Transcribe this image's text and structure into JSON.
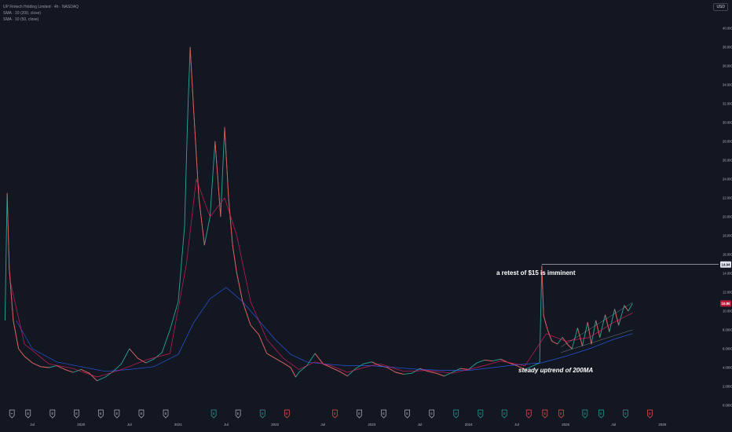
{
  "header": {
    "title": "UP Fintech Holding Limited · 4h · NASDAQ",
    "legend": [
      "SMA · 10 (200, close)",
      "SMA · 10 (50, close)"
    ],
    "currency": "USD"
  },
  "annotations": {
    "retest": "a retest of $15 is imminent",
    "uptrend": "steady uptrend of 200MA"
  },
  "price_labels": {
    "level": "14.94",
    "last": "10.80"
  },
  "colors": {
    "background": "#131722",
    "up": "#26a69a",
    "down": "#ef5350",
    "sma200": "#2962ff",
    "sma50": "#e91e63",
    "level_line": "#d1d4dc",
    "last_label": "#b71c3a"
  },
  "events": [
    {
      "x": "2019-04",
      "type": "split",
      "glyph": "✂"
    },
    {
      "x": "2019-06",
      "type": "news",
      "glyph": "E"
    },
    {
      "x": "2019-09",
      "type": "news",
      "glyph": "E"
    },
    {
      "x": "2019-12",
      "type": "news",
      "glyph": "E"
    },
    {
      "x": "2020-03",
      "type": "news",
      "glyph": "E"
    },
    {
      "x": "2020-05",
      "type": "news",
      "glyph": "E"
    },
    {
      "x": "2020-08",
      "type": "news",
      "glyph": "E"
    },
    {
      "x": "2020-11",
      "type": "news",
      "glyph": "E"
    },
    {
      "x": "2021-05",
      "type": "earnings-beat",
      "glyph": "E"
    },
    {
      "x": "2021-08",
      "type": "news",
      "glyph": "E"
    },
    {
      "x": "2021-11",
      "type": "earnings-beat",
      "glyph": "E"
    },
    {
      "x": "2022-02",
      "type": "earnings-miss",
      "glyph": "E"
    },
    {
      "x": "2022-08",
      "type": "earnings-miss",
      "glyph": "E"
    },
    {
      "x": "2022-11",
      "type": "news",
      "glyph": "E"
    },
    {
      "x": "2023-02",
      "type": "news",
      "glyph": "E"
    },
    {
      "x": "2023-05",
      "type": "news",
      "glyph": "E"
    },
    {
      "x": "2023-08",
      "type": "news",
      "glyph": "E"
    },
    {
      "x": "2023-11",
      "type": "earnings-beat",
      "glyph": "E"
    },
    {
      "x": "2024-02",
      "type": "earnings-beat",
      "glyph": "E"
    },
    {
      "x": "2024-05",
      "type": "earnings-beat",
      "glyph": "E"
    },
    {
      "x": "2024-08",
      "type": "earnings-miss",
      "glyph": "E"
    },
    {
      "x": "2024-10",
      "type": "earnings-miss",
      "glyph": "E"
    },
    {
      "x": "2024-12",
      "type": "earnings-miss",
      "glyph": "E"
    },
    {
      "x": "2025-03",
      "type": "earnings-beat",
      "glyph": "E"
    },
    {
      "x": "2025-05",
      "type": "earnings-beat",
      "glyph": "E"
    },
    {
      "x": "2025-08",
      "type": "earnings-beat",
      "glyph": "E"
    },
    {
      "x": "2025-11",
      "type": "earnings-miss",
      "glyph": "E"
    }
  ],
  "chart_data": {
    "type": "line",
    "title": "UP Fintech Holding Limited · 4h · NASDAQ",
    "xlabel": "",
    "ylabel": "",
    "x_range": [
      "2019-03",
      "2026-08"
    ],
    "ylim": [
      0,
      40
    ],
    "y_ticks": [
      "0.0000",
      "2.0000",
      "4.0000",
      "6.0000",
      "8.0000",
      "10.0000",
      "12.0000",
      "14.0000",
      "16.0000",
      "18.0000",
      "20.0000",
      "22.0000",
      "24.0000",
      "26.0000",
      "28.0000",
      "30.0000",
      "32.0000",
      "34.0000",
      "36.0000",
      "38.0000",
      "40.0000"
    ],
    "x_ticks": [
      {
        "x": "2019-07",
        "label": "Jul"
      },
      {
        "x": "2020-01",
        "label": "2020"
      },
      {
        "x": "2020-07",
        "label": "Jul"
      },
      {
        "x": "2021-01",
        "label": "2021"
      },
      {
        "x": "2021-07",
        "label": "Jul"
      },
      {
        "x": "2022-01",
        "label": "2022"
      },
      {
        "x": "2022-07",
        "label": "Jul"
      },
      {
        "x": "2023-01",
        "label": "2023"
      },
      {
        "x": "2023-07",
        "label": "Jul"
      },
      {
        "x": "2024-01",
        "label": "2024"
      },
      {
        "x": "2024-07",
        "label": "Jul"
      },
      {
        "x": "2025-01",
        "label": "2025"
      },
      {
        "x": "2025-07",
        "label": "Jul"
      },
      {
        "x": "2026-01",
        "label": "2026"
      }
    ],
    "grid": false,
    "series": [
      {
        "name": "Price",
        "points": [
          [
            "2019-03-20",
            9.0
          ],
          [
            "2019-03-28",
            22.5
          ],
          [
            "2019-04-05",
            14.5
          ],
          [
            "2019-04-20",
            9.0
          ],
          [
            "2019-05-10",
            6.0
          ],
          [
            "2019-06-01",
            5.2
          ],
          [
            "2019-07-01",
            4.5
          ],
          [
            "2019-08-01",
            4.1
          ],
          [
            "2019-09-01",
            4.0
          ],
          [
            "2019-10-01",
            4.2
          ],
          [
            "2019-11-01",
            3.8
          ],
          [
            "2019-12-01",
            3.5
          ],
          [
            "2020-01-01",
            3.8
          ],
          [
            "2020-02-01",
            3.4
          ],
          [
            "2020-03-01",
            2.6
          ],
          [
            "2020-04-01",
            3.0
          ],
          [
            "2020-05-01",
            3.6
          ],
          [
            "2020-06-01",
            4.4
          ],
          [
            "2020-07-01",
            6.0
          ],
          [
            "2020-08-01",
            5.0
          ],
          [
            "2020-09-01",
            4.5
          ],
          [
            "2020-10-01",
            4.9
          ],
          [
            "2020-11-01",
            5.6
          ],
          [
            "2020-12-01",
            8.0
          ],
          [
            "2021-01-01",
            11.0
          ],
          [
            "2021-01-25",
            19.0
          ],
          [
            "2021-02-05",
            30.0
          ],
          [
            "2021-02-15",
            38.0
          ],
          [
            "2021-03-01",
            31.0
          ],
          [
            "2021-03-20",
            22.0
          ],
          [
            "2021-04-10",
            17.0
          ],
          [
            "2021-05-01",
            20.0
          ],
          [
            "2021-05-20",
            28.0
          ],
          [
            "2021-06-10",
            20.0
          ],
          [
            "2021-06-25",
            29.5
          ],
          [
            "2021-07-10",
            22.0
          ],
          [
            "2021-07-25",
            17.0
          ],
          [
            "2021-08-10",
            14.0
          ],
          [
            "2021-09-01",
            11.0
          ],
          [
            "2021-10-01",
            8.5
          ],
          [
            "2021-11-01",
            7.5
          ],
          [
            "2021-12-01",
            5.5
          ],
          [
            "2022-01-01",
            5.0
          ],
          [
            "2022-02-01",
            4.5
          ],
          [
            "2022-03-01",
            4.0
          ],
          [
            "2022-03-20",
            3.0
          ],
          [
            "2022-04-01",
            3.5
          ],
          [
            "2022-05-01",
            4.2
          ],
          [
            "2022-06-01",
            5.5
          ],
          [
            "2022-07-01",
            4.4
          ],
          [
            "2022-08-01",
            4.0
          ],
          [
            "2022-09-01",
            3.6
          ],
          [
            "2022-10-01",
            3.1
          ],
          [
            "2022-11-01",
            3.9
          ],
          [
            "2022-12-01",
            4.4
          ],
          [
            "2023-01-01",
            4.6
          ],
          [
            "2023-02-01",
            4.2
          ],
          [
            "2023-03-01",
            4.0
          ],
          [
            "2023-04-01",
            3.5
          ],
          [
            "2023-05-01",
            3.3
          ],
          [
            "2023-06-01",
            3.4
          ],
          [
            "2023-07-01",
            3.9
          ],
          [
            "2023-08-01",
            3.6
          ],
          [
            "2023-09-01",
            3.4
          ],
          [
            "2023-10-01",
            3.1
          ],
          [
            "2023-11-01",
            3.5
          ],
          [
            "2023-12-01",
            3.9
          ],
          [
            "2024-01-01",
            3.8
          ],
          [
            "2024-02-01",
            4.5
          ],
          [
            "2024-03-01",
            4.8
          ],
          [
            "2024-04-01",
            4.7
          ],
          [
            "2024-05-01",
            4.9
          ],
          [
            "2024-06-01",
            4.5
          ],
          [
            "2024-07-01",
            4.2
          ],
          [
            "2024-08-01",
            3.8
          ],
          [
            "2024-09-01",
            4.2
          ],
          [
            "2024-09-25",
            4.5
          ],
          [
            "2024-10-03",
            14.8
          ],
          [
            "2024-10-10",
            9.5
          ],
          [
            "2024-10-25",
            8.0
          ],
          [
            "2024-11-10",
            6.8
          ],
          [
            "2024-12-01",
            6.5
          ],
          [
            "2024-12-20",
            7.2
          ],
          [
            "2025-01-10",
            6.4
          ],
          [
            "2025-01-25",
            6.0
          ],
          [
            "2025-02-15",
            8.2
          ],
          [
            "2025-03-05",
            6.3
          ],
          [
            "2025-03-25",
            8.8
          ],
          [
            "2025-04-08",
            6.5
          ],
          [
            "2025-04-25",
            9.0
          ],
          [
            "2025-05-10",
            7.2
          ],
          [
            "2025-05-30",
            9.6
          ],
          [
            "2025-06-15",
            7.8
          ],
          [
            "2025-07-05",
            10.2
          ],
          [
            "2025-07-20",
            8.5
          ],
          [
            "2025-08-10",
            10.6
          ],
          [
            "2025-08-25",
            10.0
          ],
          [
            "2025-09-10",
            10.8
          ]
        ]
      },
      {
        "name": "SMA · 10 (200, close)",
        "points": [
          [
            "2019-05-01",
            9.0
          ],
          [
            "2019-07-01",
            6.0
          ],
          [
            "2019-10-01",
            4.6
          ],
          [
            "2020-01-01",
            4.1
          ],
          [
            "2020-04-01",
            3.6
          ],
          [
            "2020-07-01",
            3.8
          ],
          [
            "2020-10-01",
            4.1
          ],
          [
            "2021-01-01",
            5.4
          ],
          [
            "2021-03-01",
            8.8
          ],
          [
            "2021-05-01",
            11.3
          ],
          [
            "2021-07-01",
            12.5
          ],
          [
            "2021-09-01",
            11.0
          ],
          [
            "2021-11-01",
            9.0
          ],
          [
            "2022-01-01",
            7.0
          ],
          [
            "2022-03-01",
            5.4
          ],
          [
            "2022-05-01",
            4.6
          ],
          [
            "2022-07-01",
            4.4
          ],
          [
            "2022-10-01",
            4.2
          ],
          [
            "2023-01-01",
            4.2
          ],
          [
            "2023-04-01",
            4.0
          ],
          [
            "2023-07-01",
            3.8
          ],
          [
            "2023-10-01",
            3.7
          ],
          [
            "2024-01-01",
            3.7
          ],
          [
            "2024-04-01",
            4.0
          ],
          [
            "2024-07-01",
            4.3
          ],
          [
            "2024-10-01",
            4.5
          ],
          [
            "2025-01-01",
            5.2
          ],
          [
            "2025-04-01",
            6.0
          ],
          [
            "2025-07-01",
            7.0
          ],
          [
            "2025-09-10",
            7.6
          ]
        ]
      },
      {
        "name": "SMA · 10 (50, close)",
        "points": [
          [
            "2019-04-10",
            13.0
          ],
          [
            "2019-06-01",
            6.5
          ],
          [
            "2019-09-01",
            4.4
          ],
          [
            "2019-12-01",
            3.9
          ],
          [
            "2020-03-01",
            3.0
          ],
          [
            "2020-06-01",
            3.8
          ],
          [
            "2020-09-01",
            4.8
          ],
          [
            "2020-12-01",
            5.5
          ],
          [
            "2021-02-01",
            15.0
          ],
          [
            "2021-03-10",
            24.0
          ],
          [
            "2021-05-01",
            20.0
          ],
          [
            "2021-06-25",
            22.0
          ],
          [
            "2021-08-10",
            18.0
          ],
          [
            "2021-10-01",
            11.0
          ],
          [
            "2021-12-01",
            7.0
          ],
          [
            "2022-02-01",
            5.0
          ],
          [
            "2022-04-01",
            3.8
          ],
          [
            "2022-06-01",
            4.6
          ],
          [
            "2022-08-01",
            4.2
          ],
          [
            "2022-10-01",
            3.5
          ],
          [
            "2022-12-01",
            4.0
          ],
          [
            "2023-02-01",
            4.4
          ],
          [
            "2023-05-01",
            3.6
          ],
          [
            "2023-08-01",
            3.7
          ],
          [
            "2023-11-01",
            3.4
          ],
          [
            "2024-02-01",
            4.0
          ],
          [
            "2024-05-01",
            4.7
          ],
          [
            "2024-08-01",
            4.2
          ],
          [
            "2024-10-20",
            7.6
          ],
          [
            "2025-01-01",
            6.8
          ],
          [
            "2025-04-01",
            7.2
          ],
          [
            "2025-07-01",
            8.8
          ],
          [
            "2025-09-10",
            9.8
          ]
        ]
      }
    ],
    "horizontal_lines": [
      {
        "y": 14.94,
        "label": "14.94"
      }
    ],
    "last_value": 10.8
  }
}
